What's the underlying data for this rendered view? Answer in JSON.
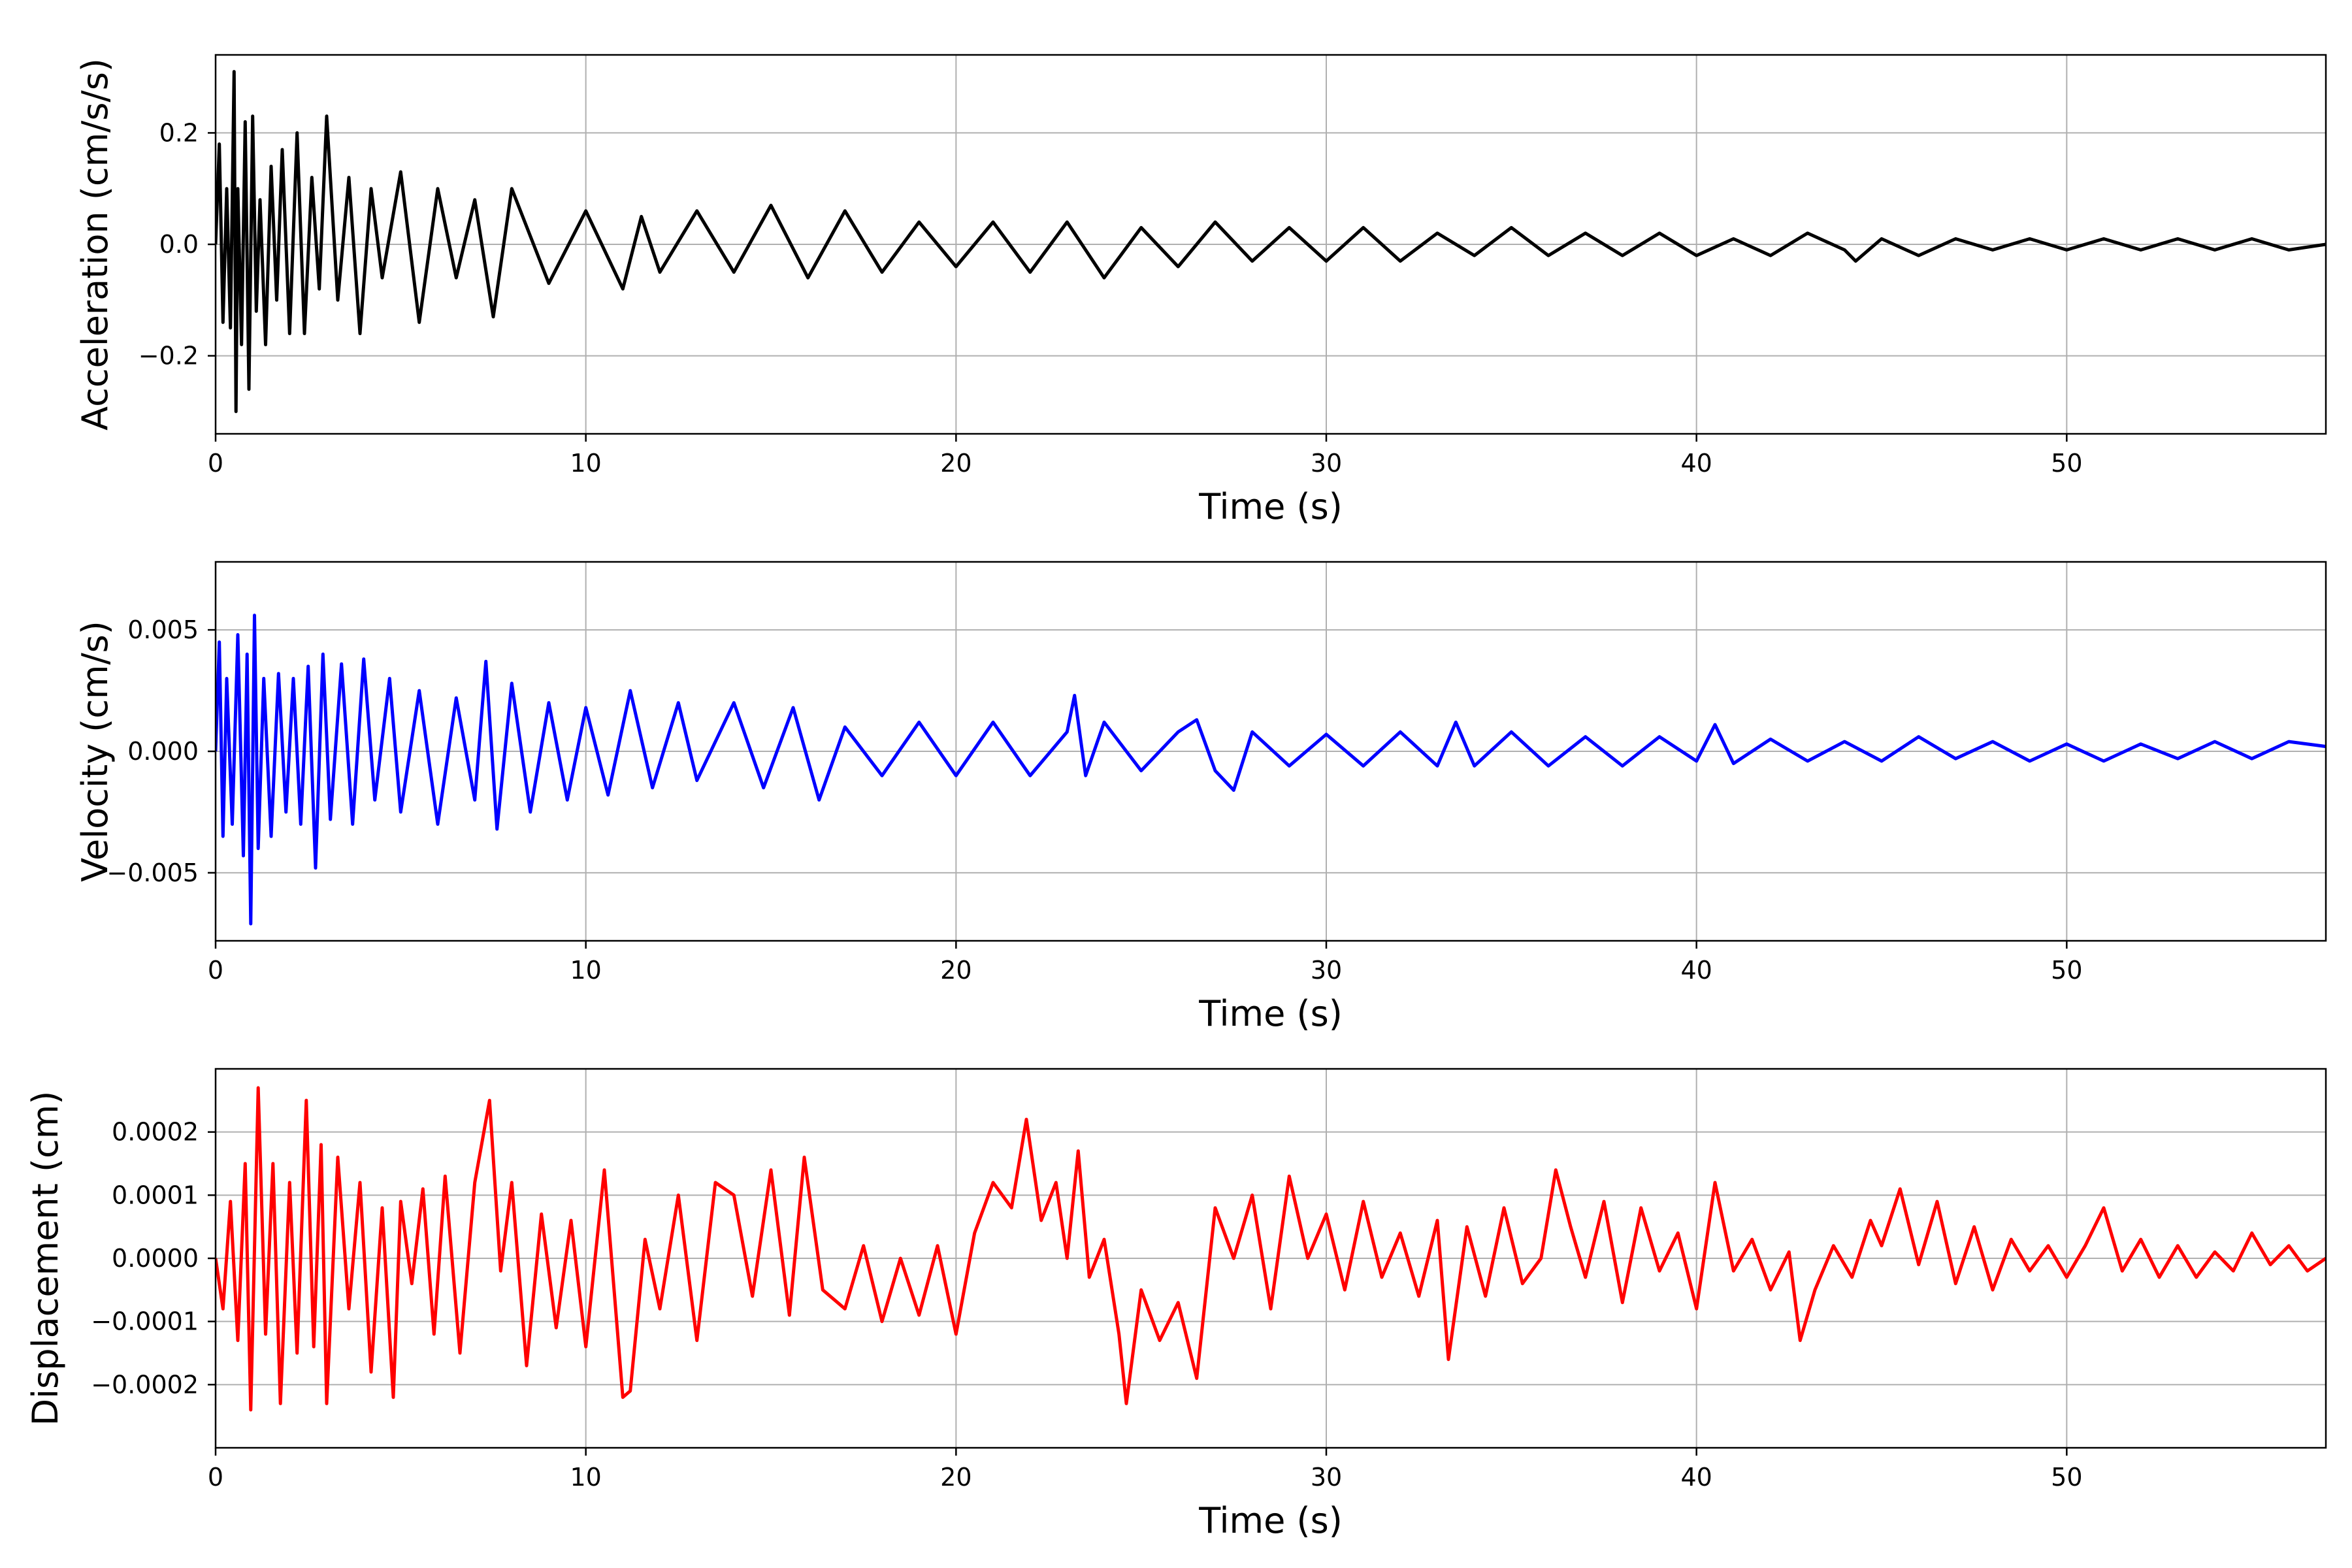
{
  "chart_data": [
    {
      "type": "line",
      "xlabel": "Time (s)",
      "ylabel": "Acceleration (cm/s/s)",
      "xlim": [
        0,
        57
      ],
      "ylim": [
        -0.34,
        0.34
      ],
      "xticks": [
        0,
        10,
        20,
        30,
        40,
        50
      ],
      "xtick_labels": [
        "0",
        "10",
        "20",
        "30",
        "40",
        "50"
      ],
      "yticks": [
        -0.2,
        0.0,
        0.2
      ],
      "ytick_labels": [
        "−0.2",
        "0.0",
        "0.2"
      ],
      "grid": true,
      "series": [
        {
          "color": "#000000",
          "x": [
            0,
            0.1,
            0.2,
            0.3,
            0.4,
            0.5,
            0.55,
            0.6,
            0.7,
            0.8,
            0.9,
            1.0,
            1.1,
            1.2,
            1.35,
            1.5,
            1.65,
            1.8,
            2.0,
            2.2,
            2.4,
            2.6,
            2.8,
            3.0,
            3.3,
            3.6,
            3.9,
            4.2,
            4.5,
            5.0,
            5.5,
            6.0,
            6.5,
            7.0,
            7.5,
            8.0,
            9.0,
            10.0,
            11.0,
            11.5,
            12.0,
            13.0,
            14.0,
            15.0,
            16.0,
            17.0,
            18.0,
            19.0,
            20.0,
            21.0,
            22.0,
            23.0,
            24.0,
            25.0,
            26.0,
            27.0,
            28.0,
            29.0,
            30.0,
            31.0,
            32.0,
            33.0,
            34.0,
            35.0,
            36.0,
            37.0,
            38.0,
            39.0,
            40.0,
            41.0,
            42.0,
            43.0,
            44.0,
            44.3,
            45.0,
            46.0,
            47.0,
            48.0,
            49.0,
            50.0,
            51.0,
            52.0,
            53.0,
            54.0,
            55.0,
            56.0,
            57.0
          ],
          "y": [
            0.0,
            0.18,
            -0.14,
            0.1,
            -0.15,
            0.31,
            -0.3,
            0.1,
            -0.18,
            0.22,
            -0.26,
            0.23,
            -0.12,
            0.08,
            -0.18,
            0.14,
            -0.1,
            0.17,
            -0.16,
            0.2,
            -0.16,
            0.12,
            -0.08,
            0.23,
            -0.1,
            0.12,
            -0.16,
            0.1,
            -0.06,
            0.13,
            -0.14,
            0.1,
            -0.06,
            0.08,
            -0.13,
            0.1,
            -0.07,
            0.06,
            -0.08,
            0.05,
            -0.05,
            0.06,
            -0.05,
            0.07,
            -0.06,
            0.06,
            -0.05,
            0.04,
            -0.04,
            0.04,
            -0.05,
            0.04,
            -0.06,
            0.03,
            -0.04,
            0.04,
            -0.03,
            0.03,
            -0.03,
            0.03,
            -0.03,
            0.02,
            -0.02,
            0.03,
            -0.02,
            0.02,
            -0.02,
            0.02,
            -0.02,
            0.01,
            -0.02,
            0.02,
            -0.01,
            -0.03,
            0.01,
            -0.02,
            0.01,
            -0.01,
            0.01,
            -0.01,
            0.01,
            -0.01,
            0.01,
            -0.01,
            0.01,
            -0.01,
            0.0
          ]
        }
      ]
    },
    {
      "type": "line",
      "xlabel": "Time (s)",
      "ylabel": "Velocity (cm/s)",
      "xlim": [
        0,
        57
      ],
      "ylim": [
        -0.0078,
        0.0078
      ],
      "xticks": [
        0,
        10,
        20,
        30,
        40,
        50
      ],
      "xtick_labels": [
        "0",
        "10",
        "20",
        "30",
        "40",
        "50"
      ],
      "yticks": [
        -0.005,
        0.0,
        0.005
      ],
      "ytick_labels": [
        "−0.005",
        "0.000",
        "0.005"
      ],
      "grid": true,
      "series": [
        {
          "color": "#0000ff",
          "x": [
            0,
            0.1,
            0.2,
            0.3,
            0.45,
            0.6,
            0.75,
            0.85,
            0.95,
            1.05,
            1.15,
            1.3,
            1.5,
            1.7,
            1.9,
            2.1,
            2.3,
            2.5,
            2.7,
            2.9,
            3.1,
            3.4,
            3.7,
            4.0,
            4.3,
            4.7,
            5.0,
            5.5,
            6.0,
            6.5,
            7.0,
            7.3,
            7.6,
            8.0,
            8.5,
            9.0,
            9.5,
            10.0,
            10.6,
            11.2,
            11.8,
            12.5,
            13.0,
            14.0,
            14.8,
            15.6,
            16.3,
            17.0,
            18.0,
            19.0,
            20.0,
            21.0,
            22.0,
            23.0,
            23.2,
            23.5,
            24.0,
            25.0,
            26.0,
            26.5,
            27.0,
            27.5,
            28.0,
            29.0,
            30.0,
            31.0,
            32.0,
            33.0,
            33.5,
            34.0,
            35.0,
            36.0,
            37.0,
            38.0,
            39.0,
            40.0,
            40.5,
            41.0,
            42.0,
            43.0,
            44.0,
            45.0,
            46.0,
            47.0,
            48.0,
            49.0,
            50.0,
            51.0,
            52.0,
            53.0,
            54.0,
            55.0,
            56.0,
            57.0
          ],
          "y": [
            0.0,
            0.0045,
            -0.0035,
            0.003,
            -0.003,
            0.0048,
            -0.0043,
            0.004,
            -0.0071,
            0.0056,
            -0.004,
            0.003,
            -0.0035,
            0.0032,
            -0.0025,
            0.003,
            -0.003,
            0.0035,
            -0.0048,
            0.004,
            -0.0028,
            0.0036,
            -0.003,
            0.0038,
            -0.002,
            0.003,
            -0.0025,
            0.0025,
            -0.003,
            0.0022,
            -0.002,
            0.0037,
            -0.0032,
            0.0028,
            -0.0025,
            0.002,
            -0.002,
            0.0018,
            -0.0018,
            0.0025,
            -0.0015,
            0.002,
            -0.0012,
            0.002,
            -0.0015,
            0.0018,
            -0.002,
            0.001,
            -0.001,
            0.0012,
            -0.001,
            0.0012,
            -0.001,
            0.0008,
            0.0023,
            -0.001,
            0.0012,
            -0.0008,
            0.0008,
            0.0013,
            -0.0008,
            -0.0016,
            0.0008,
            -0.0006,
            0.0007,
            -0.0006,
            0.0008,
            -0.0006,
            0.0012,
            -0.0006,
            0.0008,
            -0.0006,
            0.0006,
            -0.0006,
            0.0006,
            -0.0004,
            0.0011,
            -0.0005,
            0.0005,
            -0.0004,
            0.0004,
            -0.0004,
            0.0006,
            -0.0003,
            0.0004,
            -0.0004,
            0.0003,
            -0.0004,
            0.0003,
            -0.0003,
            0.0004,
            -0.0003,
            0.0004,
            0.0002
          ]
        }
      ]
    },
    {
      "type": "line",
      "xlabel": "Time (s)",
      "ylabel": "Displacement (cm)",
      "xlim": [
        0,
        57
      ],
      "ylim": [
        -0.0003,
        0.0003
      ],
      "xticks": [
        0,
        10,
        20,
        30,
        40,
        50
      ],
      "xtick_labels": [
        "0",
        "10",
        "20",
        "30",
        "40",
        "50"
      ],
      "yticks": [
        -0.0002,
        -0.0001,
        0.0,
        0.0001,
        0.0002
      ],
      "ytick_labels": [
        "−0.0002",
        "−0.0001",
        "0.0000",
        "0.0001",
        "0.0002"
      ],
      "grid": true,
      "series": [
        {
          "color": "#ff0000",
          "x": [
            0,
            0.2,
            0.4,
            0.6,
            0.8,
            0.95,
            1.15,
            1.35,
            1.55,
            1.75,
            2.0,
            2.2,
            2.45,
            2.65,
            2.85,
            3.0,
            3.3,
            3.6,
            3.9,
            4.2,
            4.5,
            4.8,
            5.0,
            5.3,
            5.6,
            5.9,
            6.2,
            6.6,
            7.0,
            7.4,
            7.7,
            8.0,
            8.4,
            8.8,
            9.2,
            9.6,
            10.0,
            10.5,
            11.0,
            11.2,
            11.6,
            12.0,
            12.5,
            13.0,
            13.5,
            14.0,
            14.5,
            15.0,
            15.5,
            15.9,
            16.4,
            17.0,
            17.5,
            18.0,
            18.5,
            19.0,
            19.5,
            20.0,
            20.5,
            21.0,
            21.5,
            21.9,
            22.3,
            22.7,
            23.0,
            23.3,
            23.6,
            24.0,
            24.4,
            24.6,
            25.0,
            25.5,
            26.0,
            26.5,
            27.0,
            27.5,
            28.0,
            28.5,
            29.0,
            29.5,
            30.0,
            30.5,
            31.0,
            31.5,
            32.0,
            32.5,
            33.0,
            33.3,
            33.8,
            34.3,
            34.8,
            35.3,
            35.8,
            36.2,
            36.6,
            37.0,
            37.5,
            38.0,
            38.5,
            39.0,
            39.5,
            40.0,
            40.5,
            41.0,
            41.5,
            42.0,
            42.5,
            42.8,
            43.2,
            43.7,
            44.2,
            44.7,
            45.0,
            45.5,
            46.0,
            46.5,
            47.0,
            47.5,
            48.0,
            48.5,
            49.0,
            49.5,
            50.0,
            50.5,
            51.0,
            51.5,
            52.0,
            52.5,
            53.0,
            53.5,
            54.0,
            54.5,
            55.0,
            55.5,
            56.0,
            56.5,
            57.0
          ],
          "y": [
            0.0,
            -8e-05,
            9e-05,
            -0.00013,
            0.00015,
            -0.00024,
            0.00027,
            -0.00012,
            0.00015,
            -0.00023,
            0.00012,
            -0.00015,
            0.00025,
            -0.00014,
            0.00018,
            -0.00023,
            0.00016,
            -8e-05,
            0.00012,
            -0.00018,
            8e-05,
            -0.00022,
            9e-05,
            -4e-05,
            0.00011,
            -0.00012,
            0.00013,
            -0.00015,
            0.00012,
            0.00025,
            -2e-05,
            0.00012,
            -0.00017,
            7e-05,
            -0.00011,
            6e-05,
            -0.00014,
            0.00014,
            -0.00022,
            -0.00021,
            3e-05,
            -8e-05,
            0.0001,
            -0.00013,
            0.00012,
            0.0001,
            -6e-05,
            0.00014,
            -9e-05,
            0.00016,
            -5e-05,
            -8e-05,
            2e-05,
            -0.0001,
            0.0,
            -9e-05,
            2e-05,
            -0.00012,
            4e-05,
            0.00012,
            8e-05,
            0.00022,
            6e-05,
            0.00012,
            0.0,
            0.00017,
            -3e-05,
            3e-05,
            -0.00012,
            -0.00023,
            -5e-05,
            -0.00013,
            -7e-05,
            -0.00019,
            8e-05,
            0.0,
            0.0001,
            -8e-05,
            0.00013,
            0.0,
            7e-05,
            -5e-05,
            9e-05,
            -3e-05,
            4e-05,
            -6e-05,
            6e-05,
            -0.00016,
            5e-05,
            -6e-05,
            8e-05,
            -4e-05,
            0.0,
            0.00014,
            5e-05,
            -3e-05,
            9e-05,
            -7e-05,
            8e-05,
            -2e-05,
            4e-05,
            -8e-05,
            0.00012,
            -2e-05,
            3e-05,
            -5e-05,
            1e-05,
            -0.00013,
            -5e-05,
            2e-05,
            -3e-05,
            6e-05,
            2e-05,
            0.00011,
            -1e-05,
            9e-05,
            -4e-05,
            5e-05,
            -5e-05,
            3e-05,
            -2e-05,
            2e-05,
            -3e-05,
            2e-05,
            8e-05,
            -2e-05,
            3e-05,
            -3e-05,
            2e-05,
            -3e-05,
            1e-05,
            -2e-05,
            4e-05,
            -1e-05,
            2e-05,
            -2e-05,
            0.0
          ]
        }
      ]
    }
  ]
}
